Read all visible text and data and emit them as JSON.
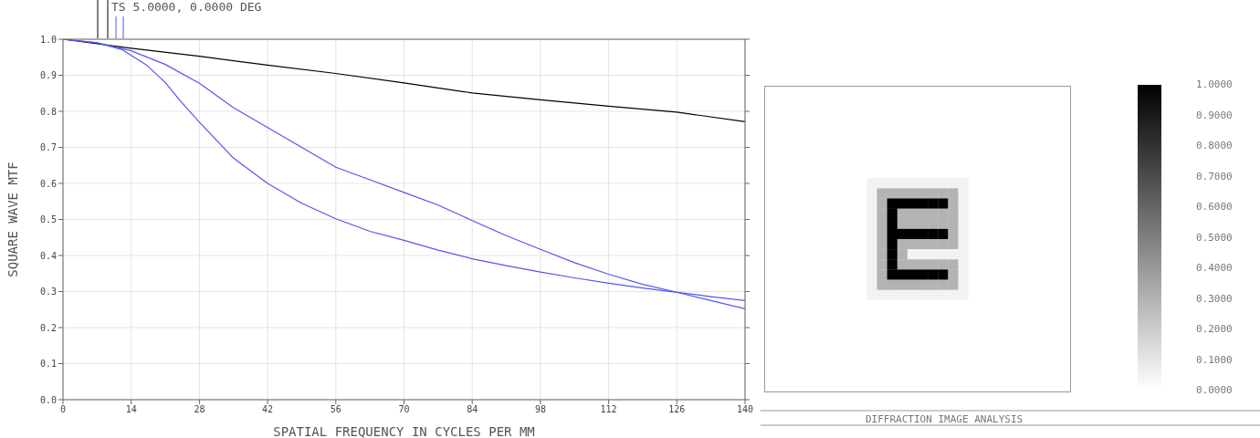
{
  "chart_data": [
    {
      "type": "line",
      "title": "TS 5.0000, 0.0000 DEG",
      "xlabel": "SPATIAL FREQUENCY IN CYCLES PER MM",
      "ylabel": "SQUARE WAVE MTF",
      "xlim": [
        0,
        140
      ],
      "xticks": [
        0,
        14,
        28,
        42,
        56,
        70,
        84,
        98,
        112,
        126,
        140
      ],
      "ylim": [
        0,
        1
      ],
      "yticks": [
        {
          "value": 0,
          "label": "0.0"
        },
        {
          "value": 0.1,
          "label": "0.1"
        },
        {
          "value": 0.2,
          "label": "0.2"
        },
        {
          "value": 0.3,
          "label": "0.3"
        },
        {
          "value": 0.4,
          "label": "0.4"
        },
        {
          "value": 0.5,
          "label": "0.5"
        },
        {
          "value": 0.6,
          "label": "0.6"
        },
        {
          "value": 0.7,
          "label": "0.7"
        },
        {
          "value": 0.8,
          "label": "0.8"
        },
        {
          "value": 0.9,
          "label": "0.9"
        },
        {
          "value": 1,
          "label": "1.0"
        }
      ],
      "grid": true,
      "marker": "none",
      "line_style": "solid",
      "series": [
        {
          "color": "#000000",
          "x": [
            0,
            14,
            28,
            42,
            56,
            70,
            84,
            98,
            112,
            126,
            140
          ],
          "values": [
            1.0,
            0.975,
            0.953,
            0.928,
            0.905,
            0.879,
            0.851,
            0.832,
            0.814,
            0.798,
            0.771
          ]
        },
        {
          "color": "#5555ee",
          "x": [
            0,
            7,
            14,
            21,
            28,
            35,
            42,
            49,
            56,
            63,
            70,
            77,
            84,
            91,
            98,
            105,
            112,
            119,
            126,
            133,
            140
          ],
          "values": [
            1.0,
            0.99,
            0.968,
            0.93,
            0.878,
            0.81,
            0.755,
            0.7,
            0.645,
            0.61,
            0.575,
            0.54,
            0.497,
            0.455,
            0.417,
            0.38,
            0.348,
            0.32,
            0.298,
            0.275,
            0.252
          ]
        },
        {
          "color": "#5555ee",
          "x": [
            0,
            7,
            12,
            17,
            21,
            24,
            28,
            35,
            42,
            49,
            56,
            63,
            70,
            77,
            84,
            91,
            98,
            105,
            112,
            119,
            126,
            133,
            140
          ],
          "values": [
            1.0,
            0.99,
            0.972,
            0.93,
            0.88,
            0.83,
            0.77,
            0.67,
            0.6,
            0.545,
            0.502,
            0.467,
            0.442,
            0.415,
            0.391,
            0.372,
            0.354,
            0.338,
            0.323,
            0.31,
            0.298,
            0.286,
            0.275
          ]
        }
      ]
    },
    {
      "type": "heatmap",
      "annotations": [
        "DIFFRACTION IMAGE ANALYSIS"
      ],
      "categories": [
        null,
        null,
        null,
        null,
        null,
        null,
        null,
        null,
        null,
        null,
        null,
        null,
        null,
        null,
        null,
        null,
        null,
        null,
        null,
        null,
        null,
        null,
        null,
        null,
        null,
        null,
        null,
        null,
        null,
        null
      ],
      "y_categories": [
        null,
        null,
        null,
        null,
        null,
        null,
        null,
        null,
        null,
        null,
        null,
        null,
        null,
        null,
        null,
        null,
        null,
        null,
        null,
        null,
        null,
        null,
        null,
        null,
        null,
        null,
        null,
        null,
        null,
        null
      ],
      "clim": [
        0,
        1
      ],
      "cticks": [
        {
          "value": 0,
          "label": "0.0000"
        },
        {
          "value": 0.1,
          "label": "0.1000"
        },
        {
          "value": 0.2,
          "label": "0.2000"
        },
        {
          "value": 0.3,
          "label": "0.3000"
        },
        {
          "value": 0.4,
          "label": "0.4000"
        },
        {
          "value": 0.5,
          "label": "0.5000"
        },
        {
          "value": 0.6,
          "label": "0.6000"
        },
        {
          "value": 0.7,
          "label": "0.7000"
        },
        {
          "value": 0.8,
          "label": "0.8000"
        },
        {
          "value": 0.9,
          "label": "0.9000"
        },
        {
          "value": 1,
          "label": "1.0000"
        }
      ],
      "cells": [
        [
          0,
          0,
          0,
          0,
          0,
          0,
          0,
          0,
          0,
          0,
          0,
          0,
          0,
          0,
          0,
          0,
          0,
          0,
          0,
          0,
          0,
          0,
          0,
          0,
          0,
          0,
          0,
          0,
          0,
          0
        ],
        [
          0,
          0,
          0,
          0,
          0,
          0,
          0,
          0,
          0,
          0,
          0,
          0,
          0,
          0,
          0,
          0,
          0,
          0,
          0,
          0,
          0,
          0,
          0,
          0,
          0,
          0,
          0,
          0,
          0,
          0
        ],
        [
          0,
          0,
          0,
          0,
          0,
          0,
          0,
          0,
          0,
          0,
          0,
          0,
          0,
          0,
          0,
          0,
          0,
          0,
          0,
          0,
          0,
          0,
          0,
          0,
          0,
          0,
          0,
          0,
          0,
          0
        ],
        [
          0,
          0,
          0,
          0,
          0,
          0,
          0,
          0,
          0,
          0,
          0,
          0,
          0,
          0,
          0,
          0,
          0,
          0,
          0,
          0,
          0,
          0,
          0,
          0,
          0,
          0,
          0,
          0,
          0,
          0
        ],
        [
          0,
          0,
          0,
          0,
          0,
          0,
          0,
          0,
          0,
          0,
          0,
          0,
          0,
          0,
          0,
          0,
          0,
          0,
          0,
          0,
          0,
          0,
          0,
          0,
          0,
          0,
          0,
          0,
          0,
          0
        ],
        [
          0,
          0,
          0,
          0,
          0,
          0,
          0,
          0,
          0,
          0,
          0,
          0,
          0,
          0,
          0,
          0,
          0,
          0,
          0,
          0,
          0,
          0,
          0,
          0,
          0,
          0,
          0,
          0,
          0,
          0
        ],
        [
          0,
          0,
          0,
          0,
          0,
          0,
          0,
          0,
          0,
          0,
          0,
          0,
          0,
          0,
          0,
          0,
          0,
          0,
          0,
          0,
          0,
          0,
          0,
          0,
          0,
          0,
          0,
          0,
          0,
          0
        ],
        [
          0,
          0,
          0,
          0,
          0,
          0,
          0,
          0,
          0,
          0,
          0,
          0,
          0,
          0,
          0,
          0,
          0,
          0,
          0,
          0,
          0,
          0,
          0,
          0,
          0,
          0,
          0,
          0,
          0,
          0
        ],
        [
          0,
          0,
          0,
          0,
          0,
          0,
          0,
          0,
          0,
          0,
          0,
          0,
          0,
          0,
          0,
          0,
          0,
          0,
          0,
          0,
          0,
          0,
          0,
          0,
          0,
          0,
          0,
          0,
          0,
          0
        ],
        [
          0,
          0,
          0,
          0,
          0,
          0,
          0,
          0,
          0,
          0,
          0.05,
          0.05,
          0.05,
          0.05,
          0.05,
          0.05,
          0.05,
          0.05,
          0.05,
          0.05,
          0,
          0,
          0,
          0,
          0,
          0,
          0,
          0,
          0,
          0
        ],
        [
          0,
          0,
          0,
          0,
          0,
          0,
          0,
          0,
          0,
          0,
          0.05,
          0.3,
          0.3,
          0.3,
          0.3,
          0.3,
          0.3,
          0.3,
          0.3,
          0.05,
          0,
          0,
          0,
          0,
          0,
          0,
          0,
          0,
          0,
          0
        ],
        [
          0,
          0,
          0,
          0,
          0,
          0,
          0,
          0,
          0,
          0,
          0.05,
          0.3,
          1,
          1,
          1,
          1,
          1,
          1,
          0.3,
          0.05,
          0,
          0,
          0,
          0,
          0,
          0,
          0,
          0,
          0,
          0
        ],
        [
          0,
          0,
          0,
          0,
          0,
          0,
          0,
          0,
          0,
          0,
          0.05,
          0.3,
          1,
          0.3,
          0.3,
          0.3,
          0.3,
          0.3,
          0.3,
          0.05,
          0,
          0,
          0,
          0,
          0,
          0,
          0,
          0,
          0,
          0
        ],
        [
          0,
          0,
          0,
          0,
          0,
          0,
          0,
          0,
          0,
          0,
          0.05,
          0.3,
          1,
          0.3,
          0.3,
          0.3,
          0.3,
          0.3,
          0.3,
          0.05,
          0,
          0,
          0,
          0,
          0,
          0,
          0,
          0,
          0,
          0
        ],
        [
          0,
          0,
          0,
          0,
          0,
          0,
          0,
          0,
          0,
          0,
          0.05,
          0.3,
          1,
          1,
          1,
          1,
          1,
          1,
          0.3,
          0.05,
          0,
          0,
          0,
          0,
          0,
          0,
          0,
          0,
          0,
          0
        ],
        [
          0,
          0,
          0,
          0,
          0,
          0,
          0,
          0,
          0,
          0,
          0.05,
          0.3,
          1,
          0.3,
          0.3,
          0.3,
          0.3,
          0.3,
          0.3,
          0.05,
          0,
          0,
          0,
          0,
          0,
          0,
          0,
          0,
          0,
          0
        ],
        [
          0,
          0,
          0,
          0,
          0,
          0,
          0,
          0,
          0,
          0,
          0.05,
          0.3,
          1,
          0.3,
          0.05,
          0.05,
          0.05,
          0.05,
          0.05,
          0.05,
          0,
          0,
          0,
          0,
          0,
          0,
          0,
          0,
          0,
          0
        ],
        [
          0,
          0,
          0,
          0,
          0,
          0,
          0,
          0,
          0,
          0,
          0.05,
          0.3,
          1,
          0.3,
          0.3,
          0.3,
          0.3,
          0.3,
          0.3,
          0.05,
          0,
          0,
          0,
          0,
          0,
          0,
          0,
          0,
          0,
          0
        ],
        [
          0,
          0,
          0,
          0,
          0,
          0,
          0,
          0,
          0,
          0,
          0.05,
          0.3,
          1,
          1,
          1,
          1,
          1,
          1,
          0.3,
          0.05,
          0,
          0,
          0,
          0,
          0,
          0,
          0,
          0,
          0,
          0
        ],
        [
          0,
          0,
          0,
          0,
          0,
          0,
          0,
          0,
          0,
          0,
          0.05,
          0.3,
          0.3,
          0.3,
          0.3,
          0.3,
          0.3,
          0.3,
          0.3,
          0.05,
          0,
          0,
          0,
          0,
          0,
          0,
          0,
          0,
          0,
          0
        ],
        [
          0,
          0,
          0,
          0,
          0,
          0,
          0,
          0,
          0,
          0,
          0.05,
          0.05,
          0.05,
          0.05,
          0.05,
          0.05,
          0.05,
          0.05,
          0.05,
          0.05,
          0,
          0,
          0,
          0,
          0,
          0,
          0,
          0,
          0,
          0
        ],
        [
          0,
          0,
          0,
          0,
          0,
          0,
          0,
          0,
          0,
          0,
          0,
          0,
          0,
          0,
          0,
          0,
          0,
          0,
          0,
          0,
          0,
          0,
          0,
          0,
          0,
          0,
          0,
          0,
          0,
          0
        ],
        [
          0,
          0,
          0,
          0,
          0,
          0,
          0,
          0,
          0,
          0,
          0,
          0,
          0,
          0,
          0,
          0,
          0,
          0,
          0,
          0,
          0,
          0,
          0,
          0,
          0,
          0,
          0,
          0,
          0,
          0
        ],
        [
          0,
          0,
          0,
          0,
          0,
          0,
          0,
          0,
          0,
          0,
          0,
          0,
          0,
          0,
          0,
          0,
          0,
          0,
          0,
          0,
          0,
          0,
          0,
          0,
          0,
          0,
          0,
          0,
          0,
          0
        ],
        [
          0,
          0,
          0,
          0,
          0,
          0,
          0,
          0,
          0,
          0,
          0,
          0,
          0,
          0,
          0,
          0,
          0,
          0,
          0,
          0,
          0,
          0,
          0,
          0,
          0,
          0,
          0,
          0,
          0,
          0
        ],
        [
          0,
          0,
          0,
          0,
          0,
          0,
          0,
          0,
          0,
          0,
          0,
          0,
          0,
          0,
          0,
          0,
          0,
          0,
          0,
          0,
          0,
          0,
          0,
          0,
          0,
          0,
          0,
          0,
          0,
          0
        ],
        [
          0,
          0,
          0,
          0,
          0,
          0,
          0,
          0,
          0,
          0,
          0,
          0,
          0,
          0,
          0,
          0,
          0,
          0,
          0,
          0,
          0,
          0,
          0,
          0,
          0,
          0,
          0,
          0,
          0,
          0
        ],
        [
          0,
          0,
          0,
          0,
          0,
          0,
          0,
          0,
          0,
          0,
          0,
          0,
          0,
          0,
          0,
          0,
          0,
          0,
          0,
          0,
          0,
          0,
          0,
          0,
          0,
          0,
          0,
          0,
          0,
          0
        ],
        [
          0,
          0,
          0,
          0,
          0,
          0,
          0,
          0,
          0,
          0,
          0,
          0,
          0,
          0,
          0,
          0,
          0,
          0,
          0,
          0,
          0,
          0,
          0,
          0,
          0,
          0,
          0,
          0,
          0,
          0
        ],
        [
          0,
          0,
          0,
          0,
          0,
          0,
          0,
          0,
          0,
          0,
          0,
          0,
          0,
          0,
          0,
          0,
          0,
          0,
          0,
          0,
          0,
          0,
          0,
          0,
          0,
          0,
          0,
          0,
          0,
          0
        ]
      ]
    }
  ]
}
